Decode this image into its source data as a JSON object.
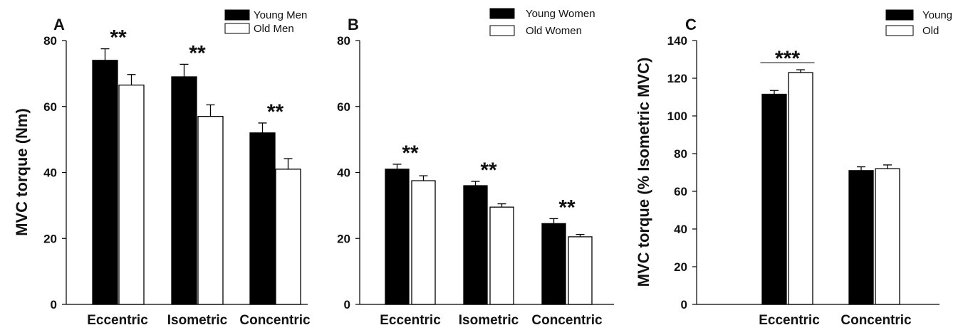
{
  "colors": {
    "young": "#000000",
    "old": "#ffffff",
    "stroke": "#000000",
    "text": "#111111"
  },
  "chart_data": [
    {
      "type": "bar",
      "panel": "A",
      "ylabel": "MVC torque (Nm)",
      "ylim": [
        0,
        80
      ],
      "yticks": [
        0,
        20,
        40,
        60,
        80
      ],
      "categories": [
        "Eccentric",
        "Isometric",
        "Concentric"
      ],
      "series": [
        {
          "name": "Young Men",
          "values": [
            74,
            69,
            52
          ],
          "errors": [
            3.5,
            3.8,
            3.0
          ]
        },
        {
          "name": "Old Men",
          "values": [
            66.5,
            57,
            41
          ],
          "errors": [
            3.2,
            3.5,
            3.2
          ]
        }
      ],
      "annotations": [
        "**",
        "**",
        "**"
      ],
      "legend": "top-right"
    },
    {
      "type": "bar",
      "panel": "B",
      "ylabel": "",
      "ylim": [
        0,
        80
      ],
      "yticks": [
        0,
        20,
        40,
        60,
        80
      ],
      "categories": [
        "Eccentric",
        "Isometric",
        "Concentric"
      ],
      "series": [
        {
          "name": "Young Women",
          "values": [
            41,
            36,
            24.5
          ],
          "errors": [
            1.5,
            1.3,
            1.5
          ]
        },
        {
          "name": "Old Women",
          "values": [
            37.5,
            29.5,
            20.5
          ],
          "errors": [
            1.5,
            1.0,
            0.7
          ]
        }
      ],
      "annotations": [
        "**",
        "**",
        "**"
      ],
      "legend": "top-right"
    },
    {
      "type": "bar",
      "panel": "C",
      "ylabel": "MVC torque (% Isometric MVC)",
      "ylim": [
        0,
        140
      ],
      "yticks": [
        0,
        20,
        40,
        60,
        80,
        100,
        120,
        140
      ],
      "categories": [
        "Eccentric",
        "Concentric"
      ],
      "series": [
        {
          "name": "Young",
          "values": [
            111.5,
            71
          ],
          "errors": [
            2.0,
            2.0
          ]
        },
        {
          "name": "Old",
          "values": [
            123,
            72
          ],
          "errors": [
            1.5,
            2.0
          ]
        }
      ],
      "annotations": [
        "***",
        ""
      ],
      "legend": "top-right"
    }
  ]
}
